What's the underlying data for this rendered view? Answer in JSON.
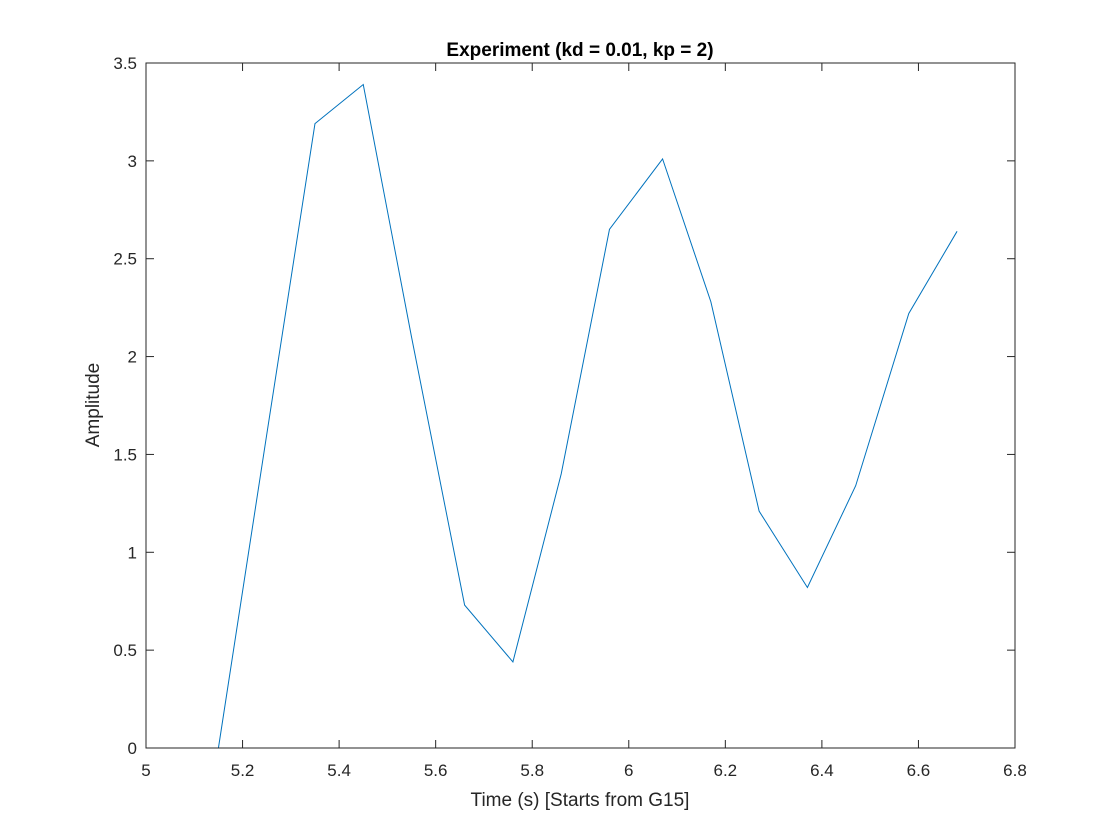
{
  "chart_data": {
    "type": "line",
    "title": "Experiment (kd = 0.01, kp = 2)",
    "xlabel": "Time (s) [Starts from G15]",
    "ylabel": "Amplitude",
    "xlim": [
      5,
      6.8
    ],
    "ylim": [
      0,
      3.5
    ],
    "xticks": [
      5,
      5.2,
      5.4,
      5.6,
      5.8,
      6,
      6.2,
      6.4,
      6.6,
      6.8
    ],
    "xtick_labels": [
      "5",
      "5.2",
      "5.4",
      "5.6",
      "5.8",
      "6",
      "6.2",
      "6.4",
      "6.6",
      "6.8"
    ],
    "yticks": [
      0,
      0.5,
      1,
      1.5,
      2,
      2.5,
      3,
      3.5
    ],
    "ytick_labels": [
      "0",
      "0.5",
      "1",
      "1.5",
      "2",
      "2.5",
      "3",
      "3.5"
    ],
    "grid": false,
    "box": true,
    "series": [
      {
        "color": "#0072BD",
        "x": [
          5.15,
          5.25,
          5.35,
          5.45,
          5.55,
          5.66,
          5.76,
          5.86,
          5.96,
          6.07,
          6.17,
          6.27,
          6.37,
          6.47,
          6.58,
          6.68
        ],
        "y": [
          0.0,
          1.6,
          3.19,
          3.39,
          2.1,
          0.73,
          0.44,
          1.4,
          2.65,
          3.01,
          2.28,
          1.21,
          0.82,
          1.34,
          2.22,
          2.64
        ]
      }
    ]
  }
}
